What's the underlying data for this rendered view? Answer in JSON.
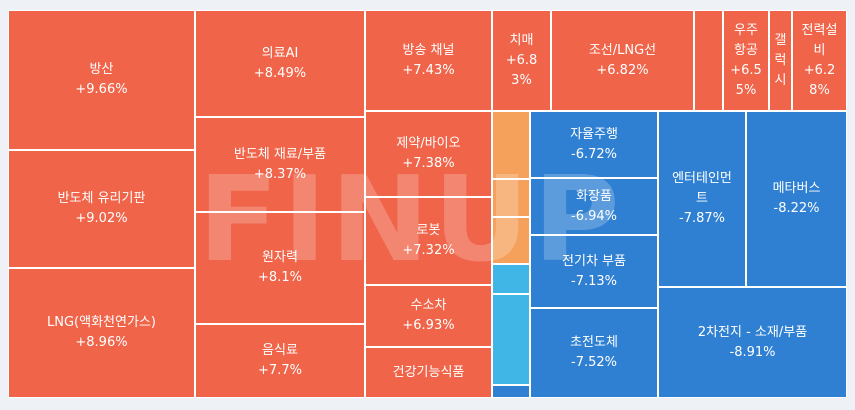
{
  "colors": {
    "up": "#f0644a",
    "down": "#2f80d2",
    "up_light": "#f5a05b",
    "down_light": "#3fb6e6",
    "border": "#ffffff",
    "background": "#eef1f6"
  },
  "watermark_text": "FINUP",
  "chart_data": {
    "type": "treemap",
    "value_unit": "% change",
    "tiles": [
      {
        "name": "방산",
        "pct": "+9.66%",
        "change": 9.66,
        "label": true
      },
      {
        "name": "반도체 유리기판",
        "pct": "+9.02%",
        "change": 9.02,
        "label": true
      },
      {
        "name": "LNG(액화천연가스)",
        "pct": "+8.96%",
        "change": 8.96,
        "label": true
      },
      {
        "name": "의료AI",
        "pct": "+8.49%",
        "change": 8.49,
        "label": true
      },
      {
        "name": "반도체 재료/부품",
        "pct": "+8.37%",
        "change": 8.37,
        "label": true
      },
      {
        "name": "원자력",
        "pct": "+8.1%",
        "change": 8.1,
        "label": true
      },
      {
        "name": "음식료",
        "pct": "+7.7%",
        "change": 7.7,
        "label": true
      },
      {
        "name": "방송 채널",
        "pct": "+7.43%",
        "change": 7.43,
        "label": true
      },
      {
        "name": "제약/바이오",
        "pct": "+7.38%",
        "change": 7.38,
        "label": true
      },
      {
        "name": "로봇",
        "pct": "+7.32%",
        "change": 7.32,
        "label": true
      },
      {
        "name": "수소차",
        "pct": "+6.93%",
        "change": 6.93,
        "label": true
      },
      {
        "name": "건강기능식품",
        "pct": "",
        "change": null,
        "label": true
      },
      {
        "name": "치매",
        "pct": "+6.8\n3%",
        "change": 6.83,
        "label": true
      },
      {
        "name": "조선/LNG선",
        "pct": "+6.82%",
        "change": 6.82,
        "label": true
      },
      {
        "name": "",
        "pct": "",
        "change": null,
        "label": false
      },
      {
        "name": "우주\n항공",
        "pct": "+6.5\n5%",
        "change": 6.55,
        "label": true
      },
      {
        "name": "갤\n럭\n시",
        "pct": "",
        "change": null,
        "label": true
      },
      {
        "name": "전력설\n비",
        "pct": "+6.2\n8%",
        "change": 6.28,
        "label": true
      },
      {
        "name": "",
        "pct": "",
        "change": null,
        "label": false
      },
      {
        "name": "",
        "pct": "",
        "change": null,
        "label": false
      },
      {
        "name": "",
        "pct": "",
        "change": null,
        "label": false
      },
      {
        "name": "",
        "pct": "",
        "change": null,
        "label": false
      },
      {
        "name": "",
        "pct": "",
        "change": null,
        "label": false
      },
      {
        "name": "",
        "pct": "",
        "change": null,
        "label": false
      },
      {
        "name": "자율주행",
        "pct": "-6.72%",
        "change": -6.72,
        "label": true
      },
      {
        "name": "화장품",
        "pct": "-6.94%",
        "change": -6.94,
        "label": true
      },
      {
        "name": "전기차 부품",
        "pct": "-7.13%",
        "change": -7.13,
        "label": true
      },
      {
        "name": "초전도체",
        "pct": "-7.52%",
        "change": -7.52,
        "label": true
      },
      {
        "name": "엔터테인먼\n트",
        "pct": "-7.87%",
        "change": -7.87,
        "label": true
      },
      {
        "name": "메타버스",
        "pct": "-8.22%",
        "change": -8.22,
        "label": true
      },
      {
        "name": "2차전지 - 소재/부품",
        "pct": "-8.91%",
        "change": -8.91,
        "label": true
      }
    ]
  }
}
